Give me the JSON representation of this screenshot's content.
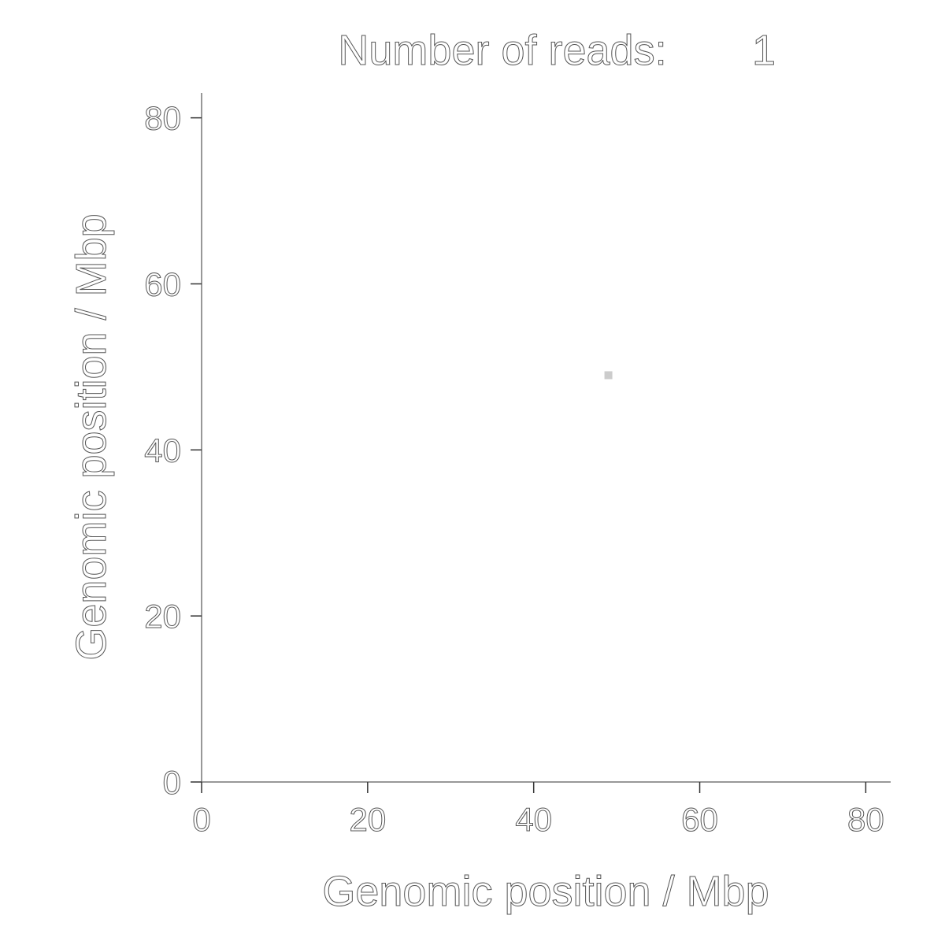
{
  "chart_data": {
    "type": "scatter",
    "title": "Number of reads:",
    "title_value": "1",
    "xlabel": "Genomic position / Mbp",
    "ylabel": "Genomic position / Mbp",
    "xlim": [
      0,
      83
    ],
    "ylim": [
      0,
      83
    ],
    "xticks": [
      0,
      20,
      40,
      60,
      80
    ],
    "yticks": [
      0,
      20,
      40,
      60,
      80
    ],
    "grid": false,
    "legend": "none",
    "point_color": "#cccccc",
    "series": [
      {
        "x": [
          49
        ],
        "y": [
          49
        ]
      }
    ]
  }
}
